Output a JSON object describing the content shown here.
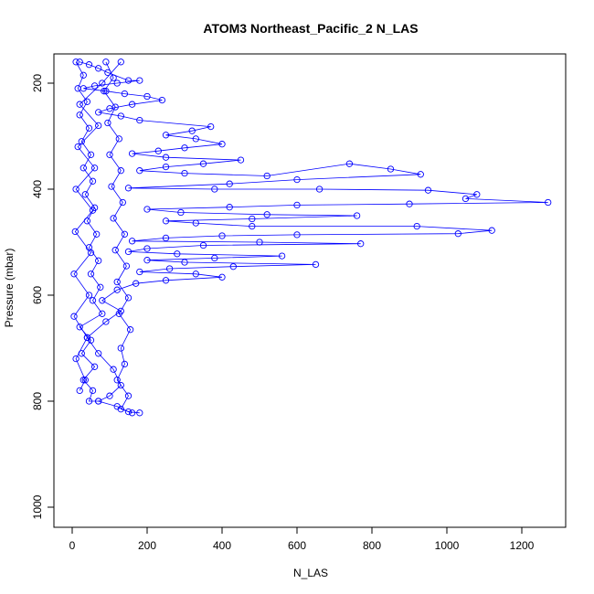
{
  "chart_data": {
    "type": "line",
    "title": "ATOM3 Northeast_Pacific_2 N_LAS",
    "xlabel": "N_LAS",
    "ylabel": "Pressure (mbar)",
    "xlim": [
      0,
      1300
    ],
    "ylim": [
      1025,
      150
    ],
    "y_reversed": true,
    "x_ticks": [
      0,
      200,
      400,
      600,
      800,
      1000,
      1200
    ],
    "y_ticks": [
      200,
      400,
      600,
      800,
      1000
    ],
    "grid": false,
    "legend": "none",
    "series": [
      {
        "color": "#0000ff",
        "marker": "open-circle",
        "points": [
          [
            20,
            160
          ],
          [
            45,
            165
          ],
          [
            70,
            172
          ],
          [
            95,
            180
          ],
          [
            150,
            195
          ],
          [
            180,
            195
          ],
          [
            120,
            200
          ],
          [
            60,
            205
          ],
          [
            30,
            210
          ],
          [
            90,
            215
          ],
          [
            140,
            220
          ],
          [
            200,
            225
          ],
          [
            240,
            232
          ],
          [
            160,
            240
          ],
          [
            100,
            248
          ],
          [
            70,
            255
          ],
          [
            130,
            262
          ],
          [
            180,
            270
          ],
          [
            370,
            282
          ],
          [
            320,
            290
          ],
          [
            250,
            298
          ],
          [
            330,
            305
          ],
          [
            400,
            315
          ],
          [
            300,
            322
          ],
          [
            230,
            328
          ],
          [
            160,
            333
          ],
          [
            250,
            340
          ],
          [
            450,
            345
          ],
          [
            350,
            352
          ],
          [
            250,
            358
          ],
          [
            180,
            365
          ],
          [
            300,
            370
          ],
          [
            520,
            375
          ],
          [
            740,
            352
          ],
          [
            850,
            362
          ],
          [
            930,
            372
          ],
          [
            600,
            382
          ],
          [
            420,
            390
          ],
          [
            150,
            398
          ],
          [
            380,
            400
          ],
          [
            660,
            400
          ],
          [
            950,
            402
          ],
          [
            1080,
            410
          ],
          [
            1050,
            418
          ],
          [
            1270,
            425
          ],
          [
            900,
            428
          ],
          [
            600,
            430
          ],
          [
            420,
            434
          ],
          [
            200,
            438
          ],
          [
            290,
            444
          ],
          [
            520,
            448
          ],
          [
            760,
            450
          ],
          [
            480,
            456
          ],
          [
            250,
            460
          ],
          [
            330,
            464
          ],
          [
            480,
            470
          ],
          [
            920,
            470
          ],
          [
            1120,
            478
          ],
          [
            1030,
            484
          ],
          [
            600,
            486
          ],
          [
            400,
            488
          ],
          [
            250,
            492
          ],
          [
            160,
            498
          ],
          [
            500,
            500
          ],
          [
            770,
            503
          ],
          [
            350,
            506
          ],
          [
            200,
            512
          ],
          [
            150,
            518
          ],
          [
            280,
            522
          ],
          [
            560,
            526
          ],
          [
            380,
            530
          ],
          [
            200,
            534
          ],
          [
            300,
            538
          ],
          [
            650,
            542
          ],
          [
            430,
            546
          ],
          [
            260,
            550
          ],
          [
            180,
            556
          ],
          [
            330,
            560
          ],
          [
            400,
            566
          ],
          [
            250,
            572
          ],
          [
            170,
            578
          ],
          [
            120,
            590
          ],
          [
            80,
            610
          ],
          [
            130,
            630
          ],
          [
            90,
            650
          ],
          [
            40,
            680
          ],
          [
            70,
            710
          ],
          [
            110,
            740
          ],
          [
            130,
            770
          ],
          [
            100,
            790
          ],
          [
            70,
            800
          ],
          [
            120,
            810
          ],
          [
            150,
            820
          ],
          [
            180,
            822
          ]
        ]
      },
      {
        "color": "#0000ff",
        "marker": "open-circle",
        "points": [
          [
            10,
            160
          ],
          [
            30,
            185
          ],
          [
            15,
            210
          ],
          [
            40,
            235
          ],
          [
            20,
            260
          ],
          [
            45,
            285
          ],
          [
            25,
            310
          ],
          [
            50,
            335
          ],
          [
            30,
            360
          ],
          [
            55,
            385
          ],
          [
            35,
            410
          ],
          [
            60,
            435
          ],
          [
            40,
            460
          ],
          [
            65,
            485
          ],
          [
            45,
            510
          ],
          [
            70,
            535
          ],
          [
            50,
            560
          ],
          [
            75,
            585
          ],
          [
            55,
            610
          ],
          [
            80,
            635
          ],
          [
            20,
            660
          ],
          [
            50,
            685
          ],
          [
            25,
            710
          ],
          [
            60,
            735
          ],
          [
            30,
            760
          ],
          [
            55,
            780
          ],
          [
            45,
            800
          ],
          [
            70,
            800
          ]
        ]
      },
      {
        "color": "#0000ff",
        "marker": "open-circle",
        "points": [
          [
            90,
            160
          ],
          [
            110,
            190
          ],
          [
            85,
            215
          ],
          [
            115,
            245
          ],
          [
            95,
            275
          ],
          [
            125,
            305
          ],
          [
            100,
            335
          ],
          [
            130,
            365
          ],
          [
            105,
            395
          ],
          [
            135,
            425
          ],
          [
            110,
            455
          ],
          [
            140,
            485
          ],
          [
            115,
            515
          ],
          [
            145,
            545
          ],
          [
            120,
            575
          ],
          [
            150,
            605
          ],
          [
            125,
            635
          ],
          [
            155,
            665
          ],
          [
            130,
            700
          ],
          [
            140,
            730
          ],
          [
            120,
            760
          ],
          [
            150,
            790
          ],
          [
            130,
            815
          ],
          [
            160,
            822
          ]
        ]
      },
      {
        "color": "#0000ff",
        "marker": "open-circle",
        "points": [
          [
            130,
            160
          ],
          [
            80,
            200
          ],
          [
            20,
            240
          ],
          [
            70,
            280
          ],
          [
            15,
            320
          ],
          [
            60,
            360
          ],
          [
            10,
            400
          ],
          [
            55,
            440
          ],
          [
            8,
            480
          ],
          [
            50,
            520
          ],
          [
            5,
            560
          ],
          [
            45,
            600
          ],
          [
            5,
            640
          ],
          [
            40,
            680
          ],
          [
            10,
            720
          ],
          [
            35,
            760
          ],
          [
            20,
            780
          ]
        ]
      }
    ]
  }
}
